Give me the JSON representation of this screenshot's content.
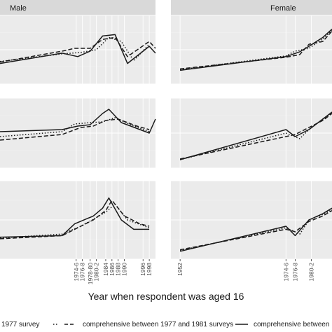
{
  "facets": [
    {
      "col": 0,
      "strip": "Male"
    },
    {
      "col": 1,
      "strip": "Female"
    }
  ],
  "xlabel": "Year when respondent was aged 16",
  "legend": {
    "items": [
      {
        "label": "1977 survey",
        "linetype": "dotted"
      },
      {
        "label": "comprehensive between 1977 and 1981 surveys",
        "linetype": "dashed"
      },
      {
        "label": "comprehensive between",
        "linetype": "solid"
      }
    ]
  },
  "colors": {
    "panel_bg": "#ebebeb",
    "grid_major": "#ffffff",
    "grid_minor": "#f4f4f4",
    "strip_bg": "#d9d9d9",
    "line": "#1a1a1a"
  },
  "chart_data": {
    "type": "line",
    "title": "",
    "ylabel": "",
    "grid": true,
    "legend_position": "bottom",
    "panel_rows": 3,
    "x_ticks": {
      "male": [
        "1974-6",
        "1976-8",
        "1978-80",
        "1980-2",
        "1984",
        "1986",
        "1988",
        "1990",
        "1996",
        "1998"
      ],
      "female": [
        "1952",
        "1974-6",
        "1976-8",
        "1980-2"
      ]
    },
    "xlim": {
      "male": [
        1950,
        2000
      ],
      "female": [
        1950,
        1985
      ]
    },
    "ylim": [
      0,
      1
    ],
    "panels": [
      {
        "row": 0,
        "col": 0,
        "series": [
          {
            "linetype": "solid",
            "x": [
              1950,
              1970,
              1975,
              1979,
              1983,
              1987,
              1991,
              1998,
              2000
            ],
            "y": [
              0.3,
              0.45,
              0.4,
              0.48,
              0.7,
              0.72,
              0.3,
              0.55,
              0.45
            ]
          },
          {
            "linetype": "dashed",
            "x": [
              1950,
              1970,
              1974,
              1979,
              1983,
              1987,
              1991,
              1998,
              2000
            ],
            "y": [
              0.32,
              0.48,
              0.52,
              0.52,
              0.65,
              0.68,
              0.4,
              0.62,
              0.52
            ]
          },
          {
            "linetype": "dotted",
            "x": [
              1950,
              1970,
              1976,
              1981,
              1985,
              1989,
              1993,
              1998
            ],
            "y": [
              0.33,
              0.44,
              0.46,
              0.5,
              0.68,
              0.62,
              0.34,
              0.58
            ]
          }
        ]
      },
      {
        "row": 0,
        "col": 1,
        "series": [
          {
            "linetype": "solid",
            "x": [
              1952,
              1975,
              1978,
              1980,
              1983,
              1985
            ],
            "y": [
              0.2,
              0.4,
              0.47,
              0.55,
              0.68,
              0.8
            ]
          },
          {
            "linetype": "dashed",
            "x": [
              1952,
              1975,
              1978,
              1980,
              1983,
              1985
            ],
            "y": [
              0.22,
              0.39,
              0.43,
              0.58,
              0.62,
              0.77
            ]
          },
          {
            "linetype": "dotted",
            "x": [
              1952,
              1975,
              1977,
              1980,
              1983,
              1985
            ],
            "y": [
              0.21,
              0.41,
              0.48,
              0.52,
              0.66,
              0.78
            ]
          }
        ]
      },
      {
        "row": 1,
        "col": 0,
        "series": [
          {
            "linetype": "solid",
            "x": [
              1950,
              1970,
              1975,
              1979,
              1983,
              1985,
              1989,
              1998,
              2000
            ],
            "y": [
              0.52,
              0.55,
              0.6,
              0.62,
              0.78,
              0.84,
              0.65,
              0.5,
              0.7
            ]
          },
          {
            "linetype": "dashed",
            "x": [
              1950,
              1970,
              1976,
              1980,
              1984,
              1988,
              1994,
              1998
            ],
            "y": [
              0.4,
              0.48,
              0.58,
              0.6,
              0.68,
              0.7,
              0.6,
              0.55
            ]
          },
          {
            "linetype": "dotted",
            "x": [
              1950,
              1970,
              1974,
              1979,
              1983,
              1987,
              1992,
              1998
            ],
            "y": [
              0.45,
              0.52,
              0.63,
              0.65,
              0.66,
              0.72,
              0.62,
              0.52
            ]
          }
        ]
      },
      {
        "row": 1,
        "col": 1,
        "series": [
          {
            "linetype": "solid",
            "x": [
              1952,
              1975,
              1977,
              1980,
              1983,
              1985
            ],
            "y": [
              0.12,
              0.55,
              0.45,
              0.55,
              0.7,
              0.8
            ]
          },
          {
            "linetype": "dashed",
            "x": [
              1952,
              1975,
              1977,
              1980,
              1983,
              1985
            ],
            "y": [
              0.13,
              0.45,
              0.48,
              0.58,
              0.68,
              0.78
            ]
          },
          {
            "linetype": "dotted",
            "x": [
              1952,
              1975,
              1978,
              1980,
              1983,
              1985
            ],
            "y": [
              0.12,
              0.5,
              0.42,
              0.55,
              0.7,
              0.79
            ]
          }
        ]
      },
      {
        "row": 2,
        "col": 0,
        "series": [
          {
            "linetype": "solid",
            "x": [
              1950,
              1970,
              1974,
              1980,
              1983,
              1985,
              1989,
              1993,
              1998
            ],
            "y": [
              0.28,
              0.3,
              0.45,
              0.55,
              0.65,
              0.78,
              0.5,
              0.38,
              0.38
            ]
          },
          {
            "linetype": "dashed",
            "x": [
              1950,
              1970,
              1975,
              1980,
              1984,
              1986,
              1990,
              1995,
              1998
            ],
            "y": [
              0.26,
              0.3,
              0.4,
              0.5,
              0.62,
              0.75,
              0.55,
              0.45,
              0.42
            ]
          },
          {
            "linetype": "dotted",
            "x": [
              1950,
              1970,
              1976,
              1981,
              1984,
              1987,
              1991,
              1998
            ],
            "y": [
              0.27,
              0.32,
              0.42,
              0.53,
              0.6,
              0.7,
              0.5,
              0.4
            ]
          }
        ]
      },
      {
        "row": 2,
        "col": 1,
        "series": [
          {
            "linetype": "solid",
            "x": [
              1952,
              1975,
              1977,
              1980,
              1983,
              1985
            ],
            "y": [
              0.1,
              0.42,
              0.3,
              0.5,
              0.58,
              0.65
            ]
          },
          {
            "linetype": "dashed",
            "x": [
              1952,
              1975,
              1977,
              1980,
              1983,
              1985
            ],
            "y": [
              0.12,
              0.38,
              0.35,
              0.48,
              0.55,
              0.62
            ]
          },
          {
            "linetype": "dotted",
            "x": [
              1952,
              1975,
              1978,
              1980,
              1983,
              1985
            ],
            "y": [
              0.11,
              0.4,
              0.32,
              0.5,
              0.57,
              0.63
            ]
          }
        ]
      }
    ]
  }
}
